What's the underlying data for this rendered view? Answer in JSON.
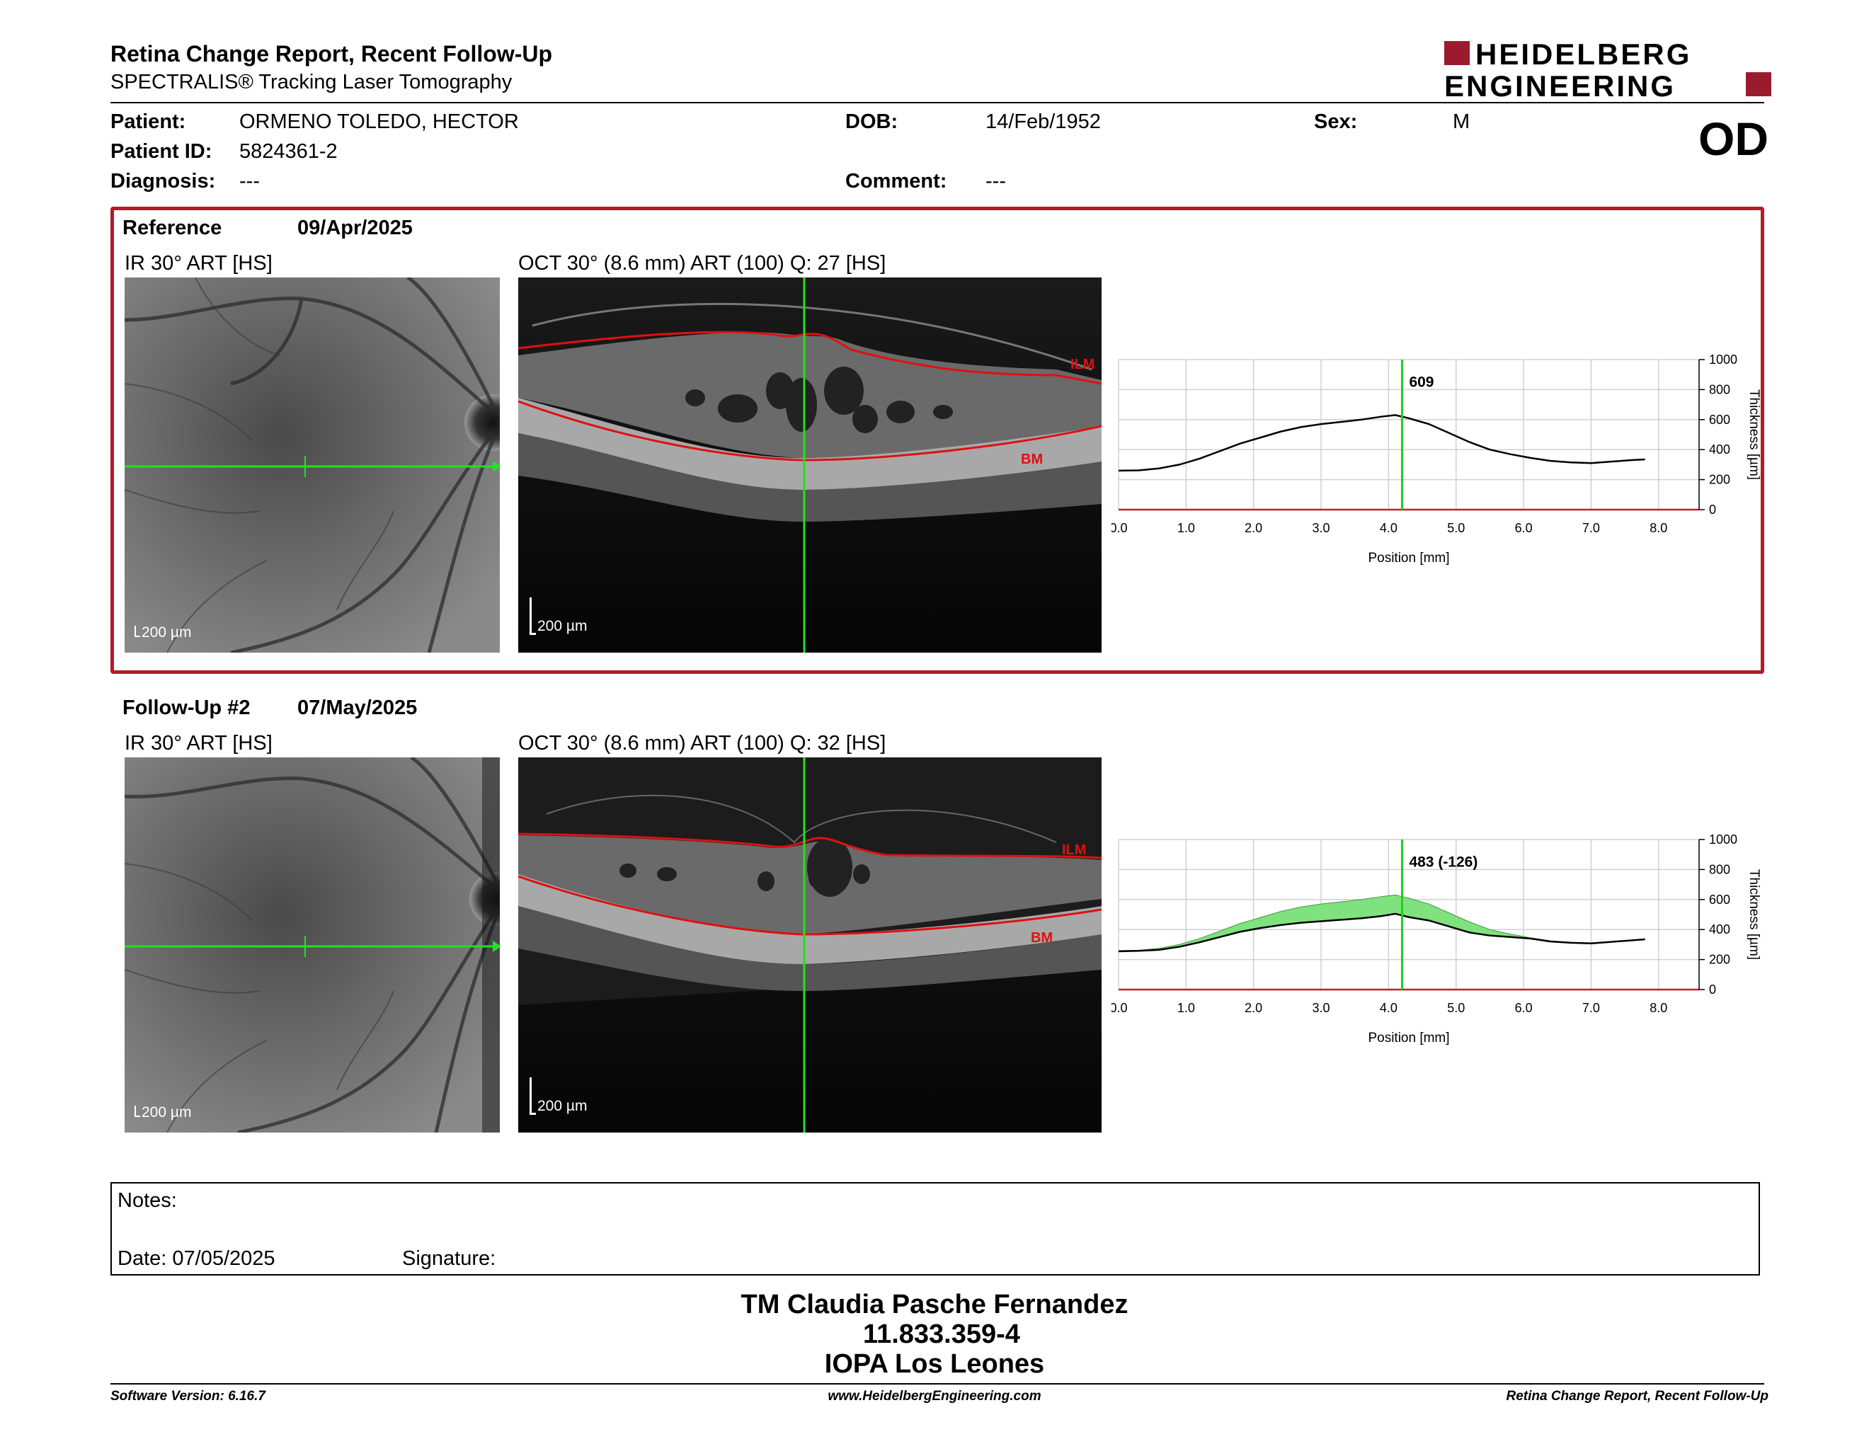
{
  "header": {
    "title": "Retina Change Report, Recent Follow-Up",
    "subtitle": "SPECTRALIS® Tracking Laser Tomography",
    "logo_line1": "HEIDELBERG",
    "logo_line2": "ENGINEERING",
    "eye": "OD"
  },
  "patient": {
    "patient_label": "Patient:",
    "patient_value": "ORMENO TOLEDO, HECTOR",
    "id_label": "Patient ID:",
    "id_value": "5824361-2",
    "diagnosis_label": "Diagnosis:",
    "diagnosis_value": "---",
    "dob_label": "DOB:",
    "dob_value": "14/Feb/1952",
    "comment_label": "Comment:",
    "comment_value": "---",
    "sex_label": "Sex:",
    "sex_value": "M"
  },
  "reference": {
    "label": "Reference",
    "date": "09/Apr/2025",
    "ir_title": "IR 30° ART [HS]",
    "oct_title": "OCT 30° (8.6 mm) ART (100) Q: 27 [HS]",
    "scale": "200 µm",
    "ilm": "ILM",
    "bm": "BM"
  },
  "followup": {
    "label": "Follow-Up #2",
    "date": "07/May/2025",
    "ir_title": "IR 30° ART [HS]",
    "oct_title": "OCT 30° (8.6 mm) ART (100) Q: 32 [HS]",
    "scale": "200 µm",
    "ilm": "ILM",
    "bm": "BM"
  },
  "chart_data": [
    {
      "type": "line",
      "xlabel": "Position [mm]",
      "ylabel": "Thickness [µm]",
      "xlim": [
        0,
        8.6
      ],
      "ylim": [
        0,
        1000
      ],
      "xticks": [
        "0.0",
        "1.0",
        "2.0",
        "3.0",
        "4.0",
        "5.0",
        "6.0",
        "7.0",
        "8.0"
      ],
      "yticks": [
        "0",
        "200",
        "400",
        "600",
        "800",
        "1000"
      ],
      "cursor_x": 4.2,
      "cursor_label": "609",
      "series": [
        {
          "values_x": [
            0,
            0.3,
            0.6,
            0.9,
            1.2,
            1.5,
            1.8,
            2.1,
            2.4,
            2.7,
            3.0,
            3.3,
            3.6,
            3.9,
            4.1,
            4.3,
            4.6,
            4.9,
            5.2,
            5.5,
            5.8,
            6.1,
            6.4,
            6.7,
            7.0,
            7.3,
            7.6,
            7.8
          ],
          "values_y": [
            260,
            262,
            275,
            300,
            340,
            390,
            440,
            480,
            520,
            550,
            570,
            585,
            600,
            620,
            630,
            609,
            570,
            510,
            450,
            400,
            370,
            345,
            325,
            315,
            310,
            320,
            330,
            335
          ]
        }
      ],
      "colors": {
        "line": "#000000",
        "cursor": "#22cc22"
      }
    },
    {
      "type": "area",
      "xlabel": "Position [mm]",
      "ylabel": "Thickness [µm]",
      "xlim": [
        0,
        8.6
      ],
      "ylim": [
        0,
        1000
      ],
      "xticks": [
        "0.0",
        "1.0",
        "2.0",
        "3.0",
        "4.0",
        "5.0",
        "6.0",
        "7.0",
        "8.0"
      ],
      "yticks": [
        "0",
        "200",
        "400",
        "600",
        "800",
        "1000"
      ],
      "cursor_x": 4.2,
      "cursor_label": "483 (-126)",
      "series": [
        {
          "values_x": [
            0,
            0.3,
            0.6,
            0.9,
            1.2,
            1.5,
            1.8,
            2.1,
            2.4,
            2.7,
            3.0,
            3.3,
            3.6,
            3.9,
            4.1,
            4.3,
            4.6,
            4.9,
            5.2,
            5.5,
            5.8,
            6.1,
            6.4,
            6.7,
            7.0,
            7.3,
            7.6,
            7.8
          ],
          "values_y": [
            260,
            262,
            275,
            300,
            340,
            390,
            440,
            480,
            520,
            550,
            570,
            585,
            600,
            620,
            630,
            609,
            570,
            510,
            450,
            400,
            370,
            345,
            325,
            315,
            310,
            320,
            330,
            335
          ]
        },
        {
          "values_x": [
            0,
            0.3,
            0.6,
            0.9,
            1.2,
            1.5,
            1.8,
            2.1,
            2.4,
            2.7,
            3.0,
            3.3,
            3.6,
            3.9,
            4.1,
            4.3,
            4.6,
            4.9,
            5.2,
            5.5,
            5.8,
            6.1,
            6.4,
            6.7,
            7.0,
            7.3,
            7.6,
            7.8
          ],
          "values_y": [
            255,
            258,
            265,
            285,
            315,
            350,
            385,
            410,
            430,
            445,
            455,
            465,
            475,
            490,
            505,
            483,
            460,
            420,
            380,
            360,
            350,
            340,
            320,
            312,
            308,
            318,
            328,
            335
          ]
        }
      ],
      "colors": {
        "line": "#000000",
        "cursor": "#22cc22",
        "fill": "#7fe27f"
      }
    }
  ],
  "notes": {
    "label": "Notes:",
    "date": "Date: 07/05/2025",
    "signature": "Signature:"
  },
  "signature_block": {
    "line1": "TM Claudia Pasche Fernandez",
    "line2": "11.833.359-4",
    "line3": "IOPA Los Leones"
  },
  "footer": {
    "left": "Software Version: 6.16.7",
    "center": "www.HeidelbergEngineering.com",
    "right": "Retina Change Report, Recent Follow-Up"
  }
}
